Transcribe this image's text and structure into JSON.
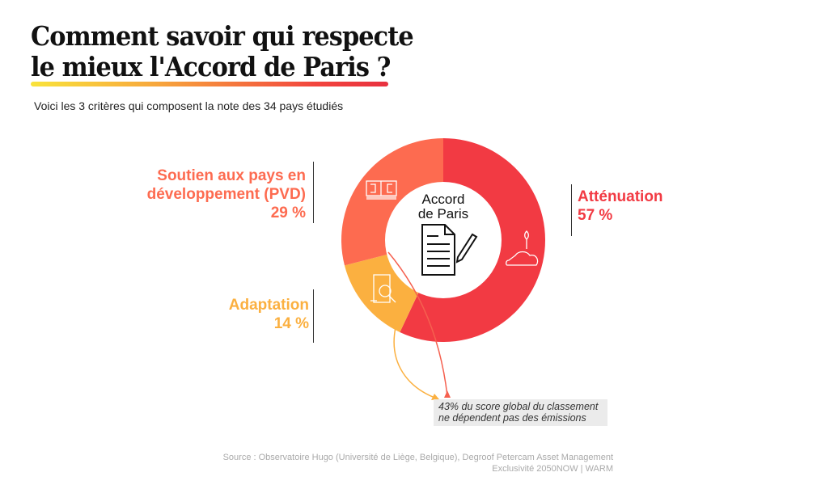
{
  "header": {
    "title_line1": "Comment savoir qui respecte",
    "title_line2": "le mieux l'Accord de Paris ?",
    "subtitle": "Voici les 3 critères qui composent la note des 34 pays étudiés"
  },
  "chart_data": {
    "type": "pie",
    "donut": true,
    "center_label": [
      "Accord",
      "de Paris"
    ],
    "categories": [
      "Atténuation",
      "Adaptation",
      "Soutien aux pays en développement (PVD)"
    ],
    "values": [
      57,
      14,
      29
    ],
    "value_labels": [
      "57 %",
      "14 %",
      "29 %"
    ],
    "colors": [
      "#f23a43",
      "#fbb040",
      "#fd6b50"
    ],
    "icons": [
      "hand-plant-icon",
      "document-magnifier-icon",
      "banknotes-icon"
    ],
    "annotation": "43% du score global du classement ne dépendent pas des émissions"
  },
  "labels": {
    "attenuation": {
      "name": "Atténuation",
      "value": "57 %"
    },
    "soutien": {
      "name_line1": "Soutien aux pays en",
      "name_line2": "développement (PVD)",
      "value": "29 %"
    },
    "adaptation": {
      "name": "Adaptation",
      "value": "14 %"
    }
  },
  "note": {
    "line1": "43% du score global du classement",
    "line2": "ne dépendent pas des émissions"
  },
  "footer": {
    "source": "Source : Observatoire Hugo (Université de Liège, Belgique), Degroof Petercam Asset Management",
    "credit": "Exclusivité 2050NOW | WARM"
  }
}
